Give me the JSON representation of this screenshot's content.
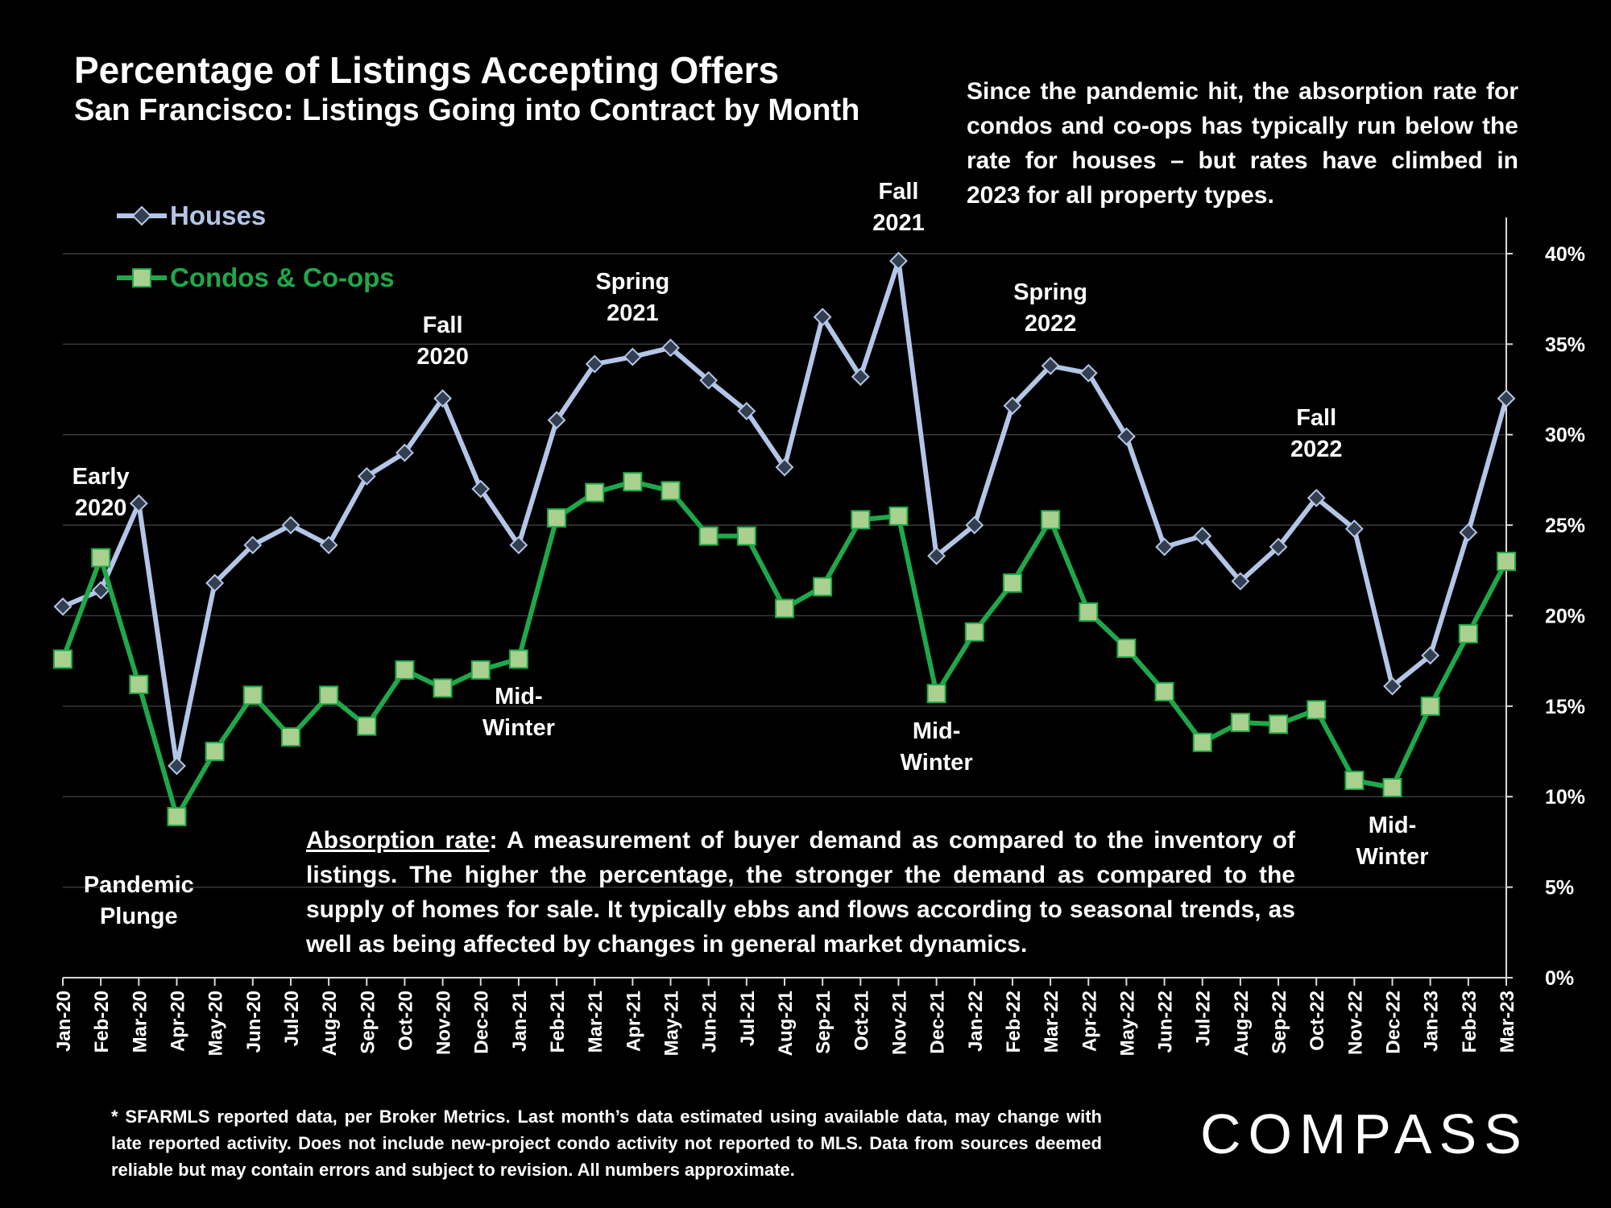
{
  "title": "Percentage of Listings Accepting Offers",
  "subtitle": "San Francisco: Listings Going into Contract by Month",
  "note": "Since the pandemic hit, the absorption rate for condos and co-ops has typically run below the rate for houses – but rates have climbed in 2023 for all property types.",
  "absorption": {
    "term": "Absorption rate",
    "text": ":  A measurement of buyer demand as compared to the inventory of listings. The higher the percentage, the stronger the demand as compared to the supply of homes for sale. It typically ebbs and flows according to seasonal trends, as well as being affected by changes in general market dynamics."
  },
  "footnote": "* SFARMLS reported data, per Broker Metrics. Last month’s data estimated using available data, may change with late reported activity. Does not include new-project condo activity not reported to MLS. Data from sources deemed reliable but may contain errors and subject to revision. All numbers approximate.",
  "logo": "COMPASS",
  "colors": {
    "houses_line": "#b4c6e7",
    "houses_marker": "#333f50",
    "condos_line": "#1fa84a",
    "condos_marker": "#a9d08e",
    "grid": "#3a3a3a",
    "background": "#000000"
  },
  "chart_data": {
    "type": "line",
    "categories": [
      "Jan-20",
      "Feb-20",
      "Mar-20",
      "Apr-20",
      "May-20",
      "Jun-20",
      "Jul-20",
      "Aug-20",
      "Sep-20",
      "Oct-20",
      "Nov-20",
      "Dec-20",
      "Jan-21",
      "Feb-21",
      "Mar-21",
      "Apr-21",
      "May-21",
      "Jun-21",
      "Jul-21",
      "Aug-21",
      "Sep-21",
      "Oct-21",
      "Nov-21",
      "Dec-21",
      "Jan-22",
      "Feb-22",
      "Mar-22",
      "Apr-22",
      "May-22",
      "Jun-22",
      "Jul-22",
      "Aug-22",
      "Sep-22",
      "Oct-22",
      "Nov-22",
      "Dec-22",
      "Jan-23",
      "Feb-23",
      "Mar-23"
    ],
    "series": [
      {
        "name": "Houses",
        "marker": "diamond",
        "values": [
          20.5,
          21.4,
          26.2,
          11.7,
          21.8,
          23.9,
          25.0,
          23.9,
          27.7,
          29.0,
          32.0,
          27.0,
          23.9,
          30.8,
          33.9,
          34.3,
          34.8,
          33.0,
          31.3,
          28.2,
          36.5,
          33.2,
          39.6,
          23.3,
          25.0,
          31.6,
          33.8,
          33.4,
          29.9,
          23.8,
          24.4,
          21.9,
          23.8,
          26.5,
          24.8,
          16.1,
          17.8,
          24.6,
          32.0
        ]
      },
      {
        "name": "Condos & Co-ops",
        "marker": "square",
        "values": [
          17.6,
          23.2,
          16.2,
          8.9,
          12.5,
          15.6,
          13.3,
          15.6,
          13.9,
          17.0,
          16.0,
          17.0,
          17.6,
          25.4,
          26.8,
          27.4,
          26.9,
          24.4,
          24.4,
          20.4,
          21.6,
          25.3,
          25.5,
          15.7,
          19.1,
          21.8,
          25.3,
          20.2,
          18.2,
          15.8,
          13.0,
          14.1,
          14.0,
          14.8,
          10.9,
          10.5,
          15.0,
          19.0,
          23.0
        ]
      }
    ],
    "y_ticks": [
      "0%",
      "5%",
      "10%",
      "15%",
      "20%",
      "25%",
      "30%",
      "35%",
      "40%"
    ],
    "ylim": [
      0,
      42
    ],
    "grid": true,
    "legend_position": "top-left",
    "annotations": [
      {
        "text": "Early\n2020",
        "category": "Feb-20"
      },
      {
        "text": "Pandemic\nPlunge",
        "category": "Mar-20"
      },
      {
        "text": "Fall\n2020",
        "category": "Nov-20"
      },
      {
        "text": "Mid-\nWinter",
        "category": "Jan-21"
      },
      {
        "text": "Spring\n2021",
        "category": "Apr-21"
      },
      {
        "text": "Fall\n2021",
        "category": "Nov-21"
      },
      {
        "text": "Mid-\nWinter",
        "category": "Dec-21"
      },
      {
        "text": "Spring\n2022",
        "category": "Mar-22"
      },
      {
        "text": "Fall\n2022",
        "category": "Oct-22"
      },
      {
        "text": "Mid-\nWinter",
        "category": "Dec-22"
      }
    ]
  }
}
